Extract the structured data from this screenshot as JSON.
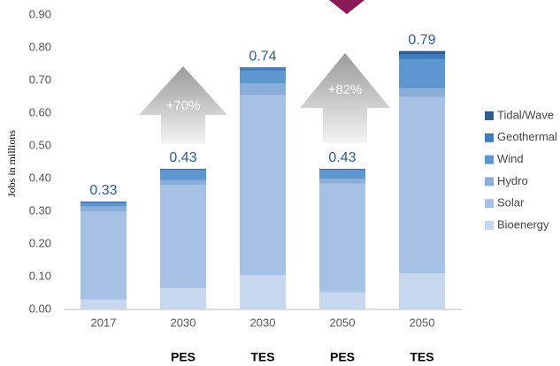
{
  "chart_data": {
    "type": "stacked_bar",
    "y_label": "Jobs in millions",
    "categories": [
      "2017",
      "2030",
      "2030",
      "2050",
      "2050"
    ],
    "sublabels": [
      null,
      "PES",
      "TES",
      "PES",
      "TES"
    ],
    "series": [
      {
        "name": "Bioenergy",
        "color": "#c7d8ee",
        "values": [
          0.03,
          0.065,
          0.105,
          0.052,
          0.11
        ]
      },
      {
        "name": "Solar",
        "color": "#a6c1e4",
        "values": [
          0.27,
          0.315,
          0.55,
          0.333,
          0.54
        ]
      },
      {
        "name": "Hydro",
        "color": "#8badda",
        "values": [
          0.015,
          0.015,
          0.035,
          0.015,
          0.025
        ]
      },
      {
        "name": "Wind",
        "color": "#5e97d0",
        "values": [
          0.01,
          0.03,
          0.04,
          0.025,
          0.09
        ]
      },
      {
        "name": "Geothermal",
        "color": "#3f7bbd",
        "values": [
          0.003,
          0.003,
          0.007,
          0.003,
          0.015
        ]
      },
      {
        "name": "Tidal/Wave",
        "color": "#2d5d92",
        "values": [
          0.002,
          0.002,
          0.003,
          0.002,
          0.01
        ]
      }
    ],
    "totals": [
      0.33,
      0.43,
      0.74,
      0.43,
      0.79
    ],
    "annotations": [
      "+70%",
      "+82%"
    ],
    "ylim": [
      0,
      0.9
    ],
    "yticks": [
      {
        "value": 0,
        "label": "0.00"
      },
      {
        "value": 0.1,
        "label": "0.10"
      },
      {
        "value": 0.2,
        "label": "0.20"
      },
      {
        "value": 0.3,
        "label": "0.30"
      },
      {
        "value": 0.4,
        "label": "0.40"
      },
      {
        "value": 0.5,
        "label": "0.50"
      },
      {
        "value": 0.6,
        "label": "0.60"
      },
      {
        "value": 0.7,
        "label": "0.70"
      },
      {
        "value": 0.8,
        "label": "0.80"
      },
      {
        "value": 0.9,
        "label": "0.90"
      }
    ],
    "grid": false,
    "legend": "right"
  }
}
